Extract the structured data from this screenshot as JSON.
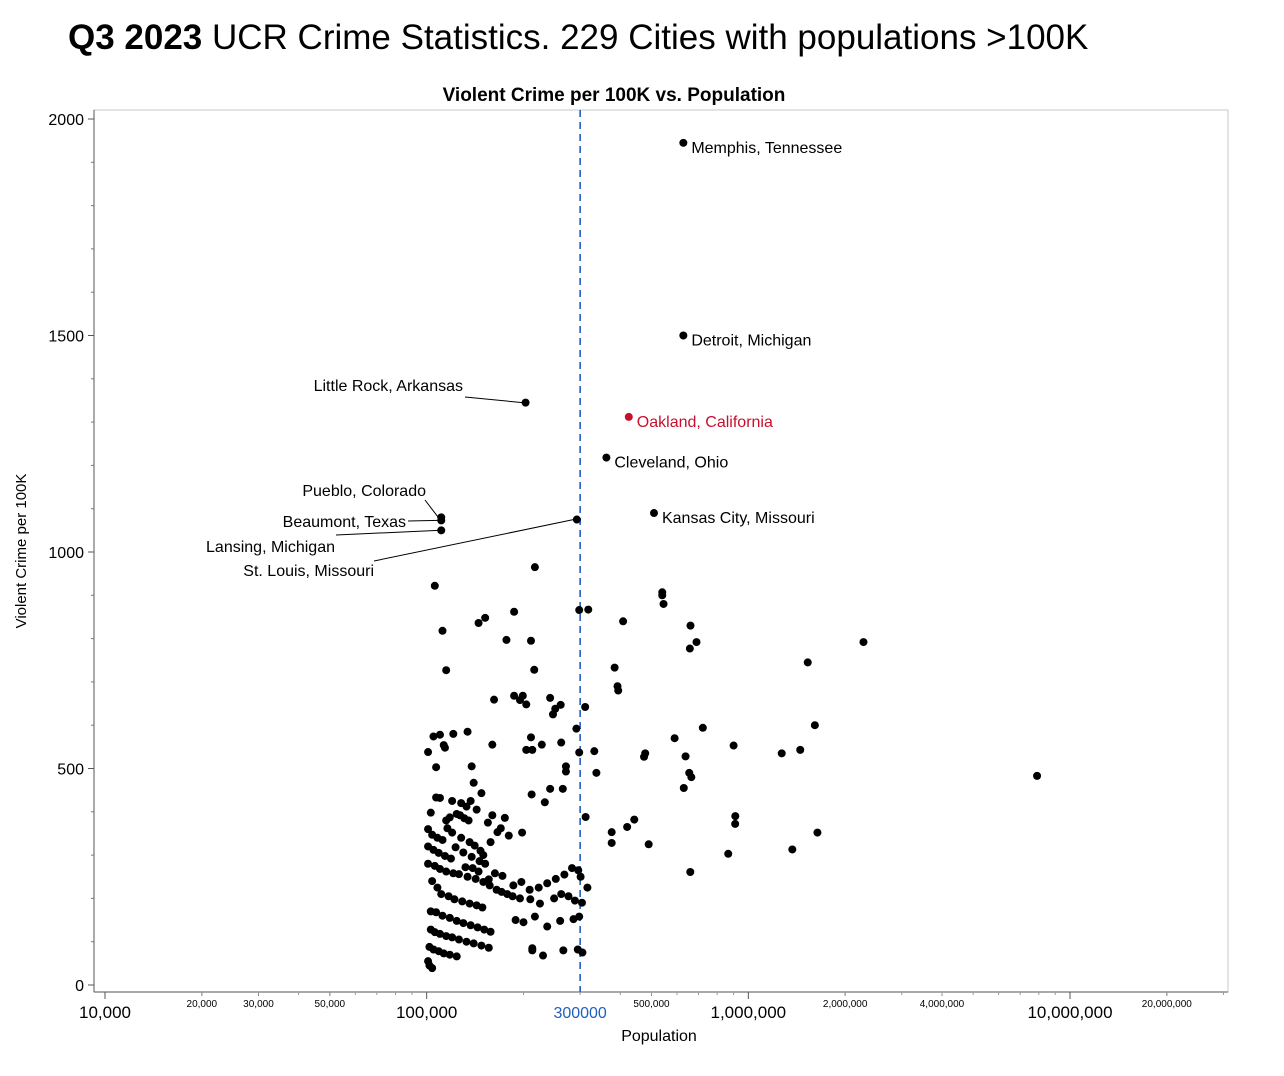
{
  "headline": {
    "bold": "Q3 2023",
    "rest": " UCR Crime Statistics. 229 Cities with populations >100K"
  },
  "chart_data": {
    "type": "scatter",
    "title": "Violent Crime per 100K vs. Population",
    "xlabel": "Population",
    "ylabel": "Violent Crime per 100K",
    "x_scale": "log",
    "xlim": [
      9000,
      30000000
    ],
    "ylim": [
      0,
      2000
    ],
    "y_ticks": [
      0,
      500,
      1000,
      1500,
      2000
    ],
    "y_tick_labels": [
      "0",
      "500",
      "1000",
      "1500",
      "2000"
    ],
    "x_ticks_major": [
      {
        "value": 10000,
        "label": "10,000"
      },
      {
        "value": 100000,
        "label": "100,000"
      },
      {
        "value": 1000000,
        "label": "1,000,000"
      },
      {
        "value": 10000000,
        "label": "10,000,000"
      }
    ],
    "x_ticks_minor": [
      {
        "value": 20000,
        "label": "20,000"
      },
      {
        "value": 30000,
        "label": "30,000"
      },
      {
        "value": 50000,
        "label": "50,000"
      },
      {
        "value": 500000,
        "label": "500,000"
      },
      {
        "value": 2000000,
        "label": "2,000,000"
      },
      {
        "value": 4000000,
        "label": "4,000,000"
      },
      {
        "value": 20000000,
        "label": "20,000,000"
      }
    ],
    "reference_line": {
      "x": 300000,
      "label": "300000",
      "color": "#1f5fbf",
      "style": "dashed"
    },
    "grid": false,
    "point_color": "#000000",
    "highlight_color": "#c8102e",
    "labeled_points": [
      {
        "name": "Memphis, Tennessee",
        "x": 628000,
        "y": 1945
      },
      {
        "name": "Detroit, Michigan",
        "x": 628000,
        "y": 1500
      },
      {
        "name": "Little Rock, Arkansas",
        "x": 203000,
        "y": 1345
      },
      {
        "name": "Oakland, California",
        "x": 425000,
        "y": 1312,
        "highlight": true
      },
      {
        "name": "Cleveland, Ohio",
        "x": 362000,
        "y": 1218
      },
      {
        "name": "Kansas City, Missouri",
        "x": 509000,
        "y": 1090
      },
      {
        "name": "Pueblo, Colorado",
        "x": 111000,
        "y": 1080
      },
      {
        "name": "Beaumont, Texas",
        "x": 111000,
        "y": 1073
      },
      {
        "name": "Lansing, Michigan",
        "x": 111000,
        "y": 1050
      },
      {
        "name": "St. Louis, Missouri",
        "x": 293000,
        "y": 1075
      }
    ],
    "points": [
      [
        217000,
        965
      ],
      [
        106000,
        922
      ],
      [
        540000,
        907
      ],
      [
        540000,
        900
      ],
      [
        545000,
        880
      ],
      [
        298000,
        866
      ],
      [
        318000,
        867
      ],
      [
        187000,
        862
      ],
      [
        152000,
        848
      ],
      [
        145000,
        836
      ],
      [
        408000,
        840
      ],
      [
        112000,
        818
      ],
      [
        177000,
        797
      ],
      [
        211000,
        795
      ],
      [
        661000,
        830
      ],
      [
        2280000,
        792
      ],
      [
        690000,
        792
      ],
      [
        658000,
        777
      ],
      [
        1530000,
        745
      ],
      [
        384000,
        733
      ],
      [
        115000,
        727
      ],
      [
        216000,
        728
      ],
      [
        392000,
        690
      ],
      [
        394000,
        680
      ],
      [
        162000,
        659
      ],
      [
        187000,
        668
      ],
      [
        199000,
        668
      ],
      [
        195000,
        658
      ],
      [
        204000,
        648
      ],
      [
        242000,
        663
      ],
      [
        251000,
        638
      ],
      [
        261000,
        647
      ],
      [
        247000,
        625
      ],
      [
        311000,
        642
      ],
      [
        292000,
        592
      ],
      [
        1610000,
        600
      ],
      [
        722000,
        594
      ],
      [
        105000,
        574
      ],
      [
        110000,
        578
      ],
      [
        121000,
        580
      ],
      [
        134000,
        585
      ],
      [
        160000,
        555
      ],
      [
        211000,
        572
      ],
      [
        228000,
        555
      ],
      [
        204000,
        543
      ],
      [
        213000,
        543
      ],
      [
        262000,
        560
      ],
      [
        298000,
        537
      ],
      [
        332000,
        540
      ],
      [
        478000,
        535
      ],
      [
        474000,
        527
      ],
      [
        590000,
        570
      ],
      [
        900000,
        553
      ],
      [
        1270000,
        535
      ],
      [
        1450000,
        543
      ],
      [
        113000,
        554
      ],
      [
        114000,
        548
      ],
      [
        101000,
        538
      ],
      [
        107000,
        503
      ],
      [
        138000,
        505
      ],
      [
        271000,
        505
      ],
      [
        271000,
        493
      ],
      [
        337000,
        490
      ],
      [
        655000,
        490
      ],
      [
        665000,
        480
      ],
      [
        638000,
        528
      ],
      [
        630000,
        455
      ],
      [
        7900000,
        483
      ],
      [
        140000,
        467
      ],
      [
        148000,
        443
      ],
      [
        242000,
        453
      ],
      [
        212000,
        440
      ],
      [
        233000,
        422
      ],
      [
        265000,
        453
      ],
      [
        107000,
        433
      ],
      [
        110000,
        432
      ],
      [
        120000,
        425
      ],
      [
        128000,
        420
      ],
      [
        133000,
        412
      ],
      [
        137000,
        425
      ],
      [
        143000,
        405
      ],
      [
        160000,
        392
      ],
      [
        155000,
        375
      ],
      [
        175000,
        386
      ],
      [
        170000,
        362
      ],
      [
        180000,
        345
      ],
      [
        198000,
        352
      ],
      [
        312000,
        388
      ],
      [
        420000,
        365
      ],
      [
        442000,
        382
      ],
      [
        376000,
        353
      ],
      [
        376000,
        328
      ],
      [
        490000,
        325
      ],
      [
        911000,
        390
      ],
      [
        910000,
        372
      ],
      [
        1640000,
        352
      ],
      [
        1370000,
        313
      ],
      [
        866000,
        303
      ],
      [
        660000,
        261
      ],
      [
        103000,
        398
      ],
      [
        115000,
        380
      ],
      [
        118000,
        387
      ],
      [
        124000,
        395
      ],
      [
        127000,
        392
      ],
      [
        131000,
        385
      ],
      [
        135000,
        380
      ],
      [
        101000,
        360
      ],
      [
        104000,
        347
      ],
      [
        108000,
        340
      ],
      [
        112000,
        335
      ],
      [
        116000,
        362
      ],
      [
        120000,
        352
      ],
      [
        128000,
        340
      ],
      [
        136000,
        330
      ],
      [
        141000,
        322
      ],
      [
        147000,
        310
      ],
      [
        150000,
        300
      ],
      [
        158000,
        330
      ],
      [
        166000,
        353
      ],
      [
        101000,
        320
      ],
      [
        105000,
        312
      ],
      [
        109000,
        305
      ],
      [
        114000,
        298
      ],
      [
        119000,
        292
      ],
      [
        123000,
        318
      ],
      [
        130000,
        306
      ],
      [
        138000,
        296
      ],
      [
        146000,
        286
      ],
      [
        152000,
        280
      ],
      [
        101000,
        280
      ],
      [
        106000,
        275
      ],
      [
        110000,
        268
      ],
      [
        115000,
        262
      ],
      [
        121000,
        258
      ],
      [
        126000,
        256
      ],
      [
        134000,
        250
      ],
      [
        142000,
        245
      ],
      [
        150000,
        238
      ],
      [
        157000,
        230
      ],
      [
        165000,
        220
      ],
      [
        171000,
        215
      ],
      [
        178000,
        210
      ],
      [
        185000,
        205
      ],
      [
        195000,
        200
      ],
      [
        210000,
        198
      ],
      [
        225000,
        188
      ],
      [
        249000,
        200
      ],
      [
        262000,
        210
      ],
      [
        276000,
        205
      ],
      [
        289000,
        195
      ],
      [
        304000,
        190
      ],
      [
        316000,
        225
      ],
      [
        301000,
        250
      ],
      [
        296000,
        265
      ],
      [
        283000,
        270
      ],
      [
        268000,
        255
      ],
      [
        252000,
        245
      ],
      [
        237000,
        235
      ],
      [
        223000,
        225
      ],
      [
        209000,
        220
      ],
      [
        197000,
        238
      ],
      [
        186000,
        230
      ],
      [
        172000,
        252
      ],
      [
        163000,
        258
      ],
      [
        156000,
        244
      ],
      [
        145000,
        262
      ],
      [
        139000,
        270
      ],
      [
        132000,
        272
      ],
      [
        104000,
        240
      ],
      [
        108000,
        225
      ],
      [
        111000,
        210
      ],
      [
        117000,
        205
      ],
      [
        122000,
        198
      ],
      [
        129000,
        193
      ],
      [
        136000,
        188
      ],
      [
        143000,
        184
      ],
      [
        149000,
        179
      ],
      [
        103000,
        170
      ],
      [
        107000,
        168
      ],
      [
        112000,
        160
      ],
      [
        118000,
        155
      ],
      [
        124000,
        148
      ],
      [
        130000,
        143
      ],
      [
        137000,
        138
      ],
      [
        144000,
        133
      ],
      [
        151000,
        128
      ],
      [
        158000,
        123
      ],
      [
        103000,
        128
      ],
      [
        106000,
        122
      ],
      [
        110000,
        118
      ],
      [
        115000,
        113
      ],
      [
        120000,
        110
      ],
      [
        126000,
        105
      ],
      [
        133000,
        100
      ],
      [
        140000,
        96
      ],
      [
        148000,
        91
      ],
      [
        156000,
        86
      ],
      [
        102000,
        88
      ],
      [
        105000,
        82
      ],
      [
        109000,
        78
      ],
      [
        113000,
        73
      ],
      [
        118000,
        70
      ],
      [
        124000,
        66
      ],
      [
        101000,
        55
      ],
      [
        102000,
        45
      ],
      [
        104000,
        39
      ],
      [
        189000,
        150
      ],
      [
        200000,
        145
      ],
      [
        217000,
        158
      ],
      [
        237000,
        135
      ],
      [
        260000,
        148
      ],
      [
        286000,
        152
      ],
      [
        298000,
        158
      ],
      [
        213000,
        85
      ],
      [
        213000,
        80
      ],
      [
        230000,
        68
      ],
      [
        266000,
        80
      ],
      [
        295000,
        82
      ],
      [
        305000,
        75
      ]
    ]
  }
}
